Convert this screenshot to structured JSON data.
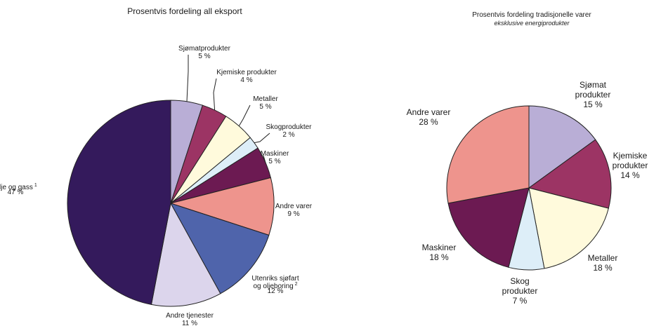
{
  "chart_data": [
    {
      "type": "pie",
      "title": "Prosentvis fordeling all eksport",
      "unit": "%",
      "slices": [
        {
          "label": "Sjømatprodukter",
          "value": 5,
          "value_label": "5 %",
          "color": "#b9aed6"
        },
        {
          "label": "Kjemiske produkter",
          "value": 4,
          "value_label": "4 %",
          "color": "#9c3464"
        },
        {
          "label": "Metaller",
          "value": 5,
          "value_label": "5 %",
          "color": "#fffadc"
        },
        {
          "label": "Skogprodukter",
          "value": 2,
          "value_label": "2 %",
          "color": "#ddeef8"
        },
        {
          "label": "Maskiner",
          "value": 5,
          "value_label": "5 %",
          "color": "#6c1a52"
        },
        {
          "label": "Andre varer",
          "value": 9,
          "value_label": "9 %",
          "color": "#ee948d"
        },
        {
          "label": "Utenriks sjøfart og oljeboring",
          "label_lines": [
            "Utenriks sjøfart",
            "og oljeboring"
          ],
          "sup": "2",
          "value": 12,
          "value_label": "12 %",
          "color": "#4f64ab"
        },
        {
          "label": "Andre tjenester",
          "value": 11,
          "value_label": "11 %",
          "color": "#dcd5ec"
        },
        {
          "label": "Olje og gass",
          "sup": "1",
          "value": 47,
          "value_label": "47 %",
          "color": "#341a5c"
        }
      ]
    },
    {
      "type": "pie",
      "title": "Prosentvis fordeling tradisjonelle varer",
      "subtitle": "eksklusive energiprodukter",
      "unit": "%",
      "slices": [
        {
          "label": "Sjømat produkter",
          "label_lines": [
            "Sjømat",
            "produkter"
          ],
          "value": 15,
          "value_label": "15 %",
          "color": "#b9aed6"
        },
        {
          "label": "Kjemiske produkter",
          "label_lines": [
            "Kjemiske",
            "produkter"
          ],
          "value": 14,
          "value_label": "14 %",
          "color": "#9c3464"
        },
        {
          "label": "Metaller",
          "value": 18,
          "value_label": "18 %",
          "color": "#fffadc"
        },
        {
          "label": "Skog produkter",
          "label_lines": [
            "Skog",
            "produkter"
          ],
          "value": 7,
          "value_label": "7 %",
          "color": "#ddeef8"
        },
        {
          "label": "Maskiner",
          "value": 18,
          "value_label": "18 %",
          "color": "#6c1a52"
        },
        {
          "label": "Andre varer",
          "value": 28,
          "value_label": "28 %",
          "color": "#ee948d"
        }
      ]
    }
  ]
}
